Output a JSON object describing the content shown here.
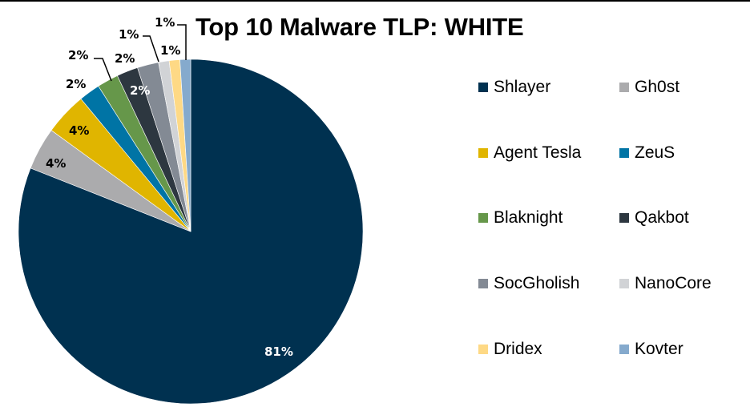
{
  "chart_data": {
    "type": "pie",
    "title": "Top 10 Malware TLP: WHITE",
    "categories": [
      "Shlayer",
      "Gh0st",
      "Agent Tesla",
      "ZeuS",
      "Blaknight",
      "Qakbot",
      "SocGholish",
      "NanoCore",
      "Dridex",
      "Kovter"
    ],
    "values": [
      81,
      4,
      4,
      2,
      2,
      2,
      2,
      1,
      1,
      1
    ],
    "labels": [
      "81%",
      "4%",
      "4%",
      "2%",
      "2%",
      "2%",
      "2%",
      "1%",
      "1%",
      "1%"
    ],
    "colors": [
      "#003150",
      "#ababad",
      "#e0b500",
      "#0074a5",
      "#66974a",
      "#2d3740",
      "#838a94",
      "#d1d3d6",
      "#fed985",
      "#85aacd"
    ],
    "start_angle_deg": 0,
    "direction": "clockwise",
    "legend_position": "right",
    "legend_columns": 2
  },
  "title": "Top 10 Malware TLP: WHITE",
  "legend": [
    {
      "name": "Shlayer",
      "color": "#003150"
    },
    {
      "name": "Gh0st",
      "color": "#ababad"
    },
    {
      "name": "Agent Tesla",
      "color": "#e0b500"
    },
    {
      "name": "ZeuS",
      "color": "#0074a5"
    },
    {
      "name": "Blaknight",
      "color": "#66974a"
    },
    {
      "name": "Qakbot",
      "color": "#2d3740"
    },
    {
      "name": "SocGholish",
      "color": "#838a94"
    },
    {
      "name": "NanoCore",
      "color": "#d1d3d6"
    },
    {
      "name": "Dridex",
      "color": "#fed985"
    },
    {
      "name": "Kovter",
      "color": "#85aacd"
    }
  ]
}
